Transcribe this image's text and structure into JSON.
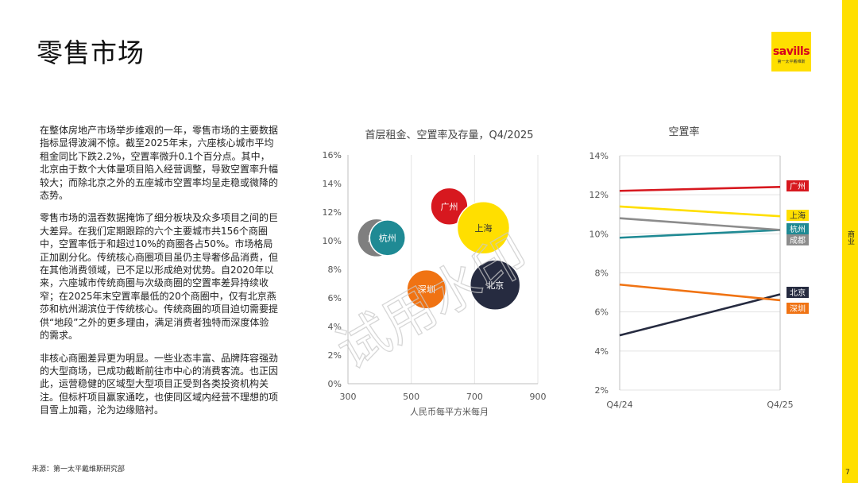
{
  "page": {
    "title": "零售市场",
    "logo_text": "savills",
    "logo_subtext": "第一太平戴维斯",
    "side_label": "商业",
    "page_number": "7",
    "source": "来源：第一太平戴维斯研究部",
    "watermark": "试用水印",
    "colors": {
      "accent_yellow": "#ffdf00",
      "logo_red": "#d6001c"
    }
  },
  "body": {
    "paragraphs": [
      "在整体房地产市场举步维艰的一年，零售市场的主要数据指标显得波澜不惊。截至2025年末，六座核心城市平均租金同比下跌2.2%，空置率微升0.1个百分点。其中，北京由于数个大体量项目陷入经营调整，导致空置率升幅较大；而除北京之外的五座城市空置率均呈走稳或微降的态势。",
      "零售市场的温吞数据掩饰了细分板块及众多项目之间的巨大差异。在我们定期跟踪的六个主要城市共156个商圈中，空置率低于和超过10%的商圈各占50%。市场格局正加剧分化。传统核心商圈项目虽仍主导奢侈品消费，但在其他消费领域，已不足以形成绝对优势。自2020年以来，六座城市传统商圈与次级商圈的空置率差异持续收窄；在2025年末空置率最低的20个商圈中，仅有北京燕莎和杭州湖滨位于传统核心。传统商圈的项目迫切需要提供“地段”之外的更多理由，满足消费者独特而深度体验的需求。",
      "非核心商圈差异更为明显。一些业态丰富、品牌阵容强劲的大型商场，已成功截断前往市中心的消费客流。也正因此，运营稳健的区域型大型项目正受到各类投资机构关注。但标杆项目赢家通吃，也使同区域内经营不理想的项目雪上加霜，沦为边缘赔衬。"
    ]
  },
  "chart_data": [
    {
      "type": "bubble",
      "title": "首层租金、空置率及存量，Q4/2025",
      "xlabel": "人民币每平方米每月",
      "ylabel": "",
      "xlim": [
        300,
        900
      ],
      "ylim": [
        0,
        16
      ],
      "x_ticks": [
        "300",
        "500",
        "700",
        "900"
      ],
      "y_ticks": [
        "0%",
        "2%",
        "4%",
        "6%",
        "8%",
        "10%",
        "12%",
        "14%",
        "16%"
      ],
      "grid": "vertical",
      "points": [
        {
          "label": "成都",
          "x": 390,
          "y": 10.2,
          "size": 0.8,
          "color": "#7f7f7f"
        },
        {
          "label": "杭州",
          "x": 425,
          "y": 10.2,
          "size": 0.75,
          "color": "#1f8a94"
        },
        {
          "label": "广州",
          "x": 620,
          "y": 12.4,
          "size": 0.78,
          "color": "#d7181f"
        },
        {
          "label": "上海",
          "x": 728,
          "y": 10.9,
          "size": 1.1,
          "color": "#ffdf00"
        },
        {
          "label": "深圳",
          "x": 548,
          "y": 6.6,
          "size": 0.82,
          "color": "#f07313"
        },
        {
          "label": "北京",
          "x": 765,
          "y": 6.9,
          "size": 1.05,
          "color": "#262b40"
        }
      ]
    },
    {
      "type": "line",
      "title": "空置率",
      "categories": [
        "Q4/24",
        "Q4/25"
      ],
      "ylim": [
        2,
        14
      ],
      "y_ticks": [
        "2%",
        "4%",
        "6%",
        "8%",
        "10%",
        "12%",
        "14%"
      ],
      "grid": "horizontal",
      "series": [
        {
          "name": "广州",
          "values": [
            12.2,
            12.4
          ],
          "color": "#d7181f"
        },
        {
          "name": "上海",
          "values": [
            11.4,
            10.9
          ],
          "color": "#ffdf00"
        },
        {
          "name": "杭州",
          "values": [
            9.8,
            10.2
          ],
          "color": "#1f8a94"
        },
        {
          "name": "成都",
          "values": [
            10.8,
            10.2
          ],
          "color": "#8c8c8c"
        },
        {
          "name": "北京",
          "values": [
            4.8,
            6.9
          ],
          "color": "#262b40"
        },
        {
          "name": "深圳",
          "values": [
            7.4,
            6.6
          ],
          "color": "#f07313"
        }
      ]
    }
  ]
}
